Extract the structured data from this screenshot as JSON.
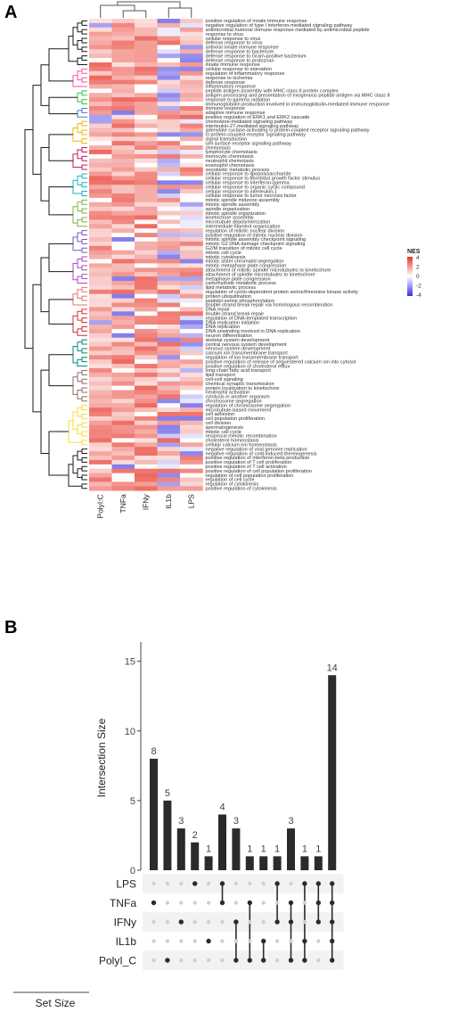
{
  "panels": {
    "a_label": "A",
    "b_label": "B"
  },
  "chart_data": [
    {
      "type": "heatmap",
      "columns": [
        "PolyI:C",
        "TNFa",
        "IFNy",
        "IL1b",
        "LPS"
      ],
      "legend": {
        "title": "NES",
        "ticks": [
          4,
          2,
          0,
          -2,
          -4
        ],
        "colors": {
          "high": "#e8362a",
          "mid": "#ffffff",
          "low": "#3b2fe0"
        }
      },
      "row_terms": [
        "positive regulation of innate immune response",
        "negative regulation of type I interferon-mediated signaling pathway",
        "antimicrobial humoral immune response mediated by antimicrobial peptide",
        "response to virus",
        "cellular response to virus",
        "defense response to virus",
        "antiviral innate immune response",
        "defense response to bacterium",
        "defense response to Gram-positive bacterium",
        "defense response to protozoan",
        "innate immune response",
        "cellular response to starvation",
        "regulation of inflammatory response",
        "response to ischemia",
        "defense response",
        "inflammatory response",
        "peptide antigen assembly with MHC class II protein complex",
        "antigen processing and presentation of exogenous peptide antigen via MHC class II",
        "response to gamma radiation",
        "immunoglobulin production involved in immunoglobulin-mediated immune response",
        "immune response",
        "adaptive immune response",
        "positive regulation of ERK1 and ERK2 cascade",
        "chemokine-mediated signaling pathway",
        "interleukin-27-mediated signaling pathway",
        "adenylate cyclase-activating G protein-coupled receptor signaling pathway",
        "G protein-coupled receptor signaling pathway",
        "signal transduction",
        "cell surface receptor signaling pathway",
        "chemotaxis",
        "lymphocyte chemotaxis",
        "monocyte chemotaxis",
        "neutrophil chemotaxis",
        "eosinophil chemotaxis",
        "xenobiotic metabolic process",
        "cellular response to lipopolysaccharide",
        "cellular response to fibroblast growth factor stimulus",
        "cellular response to interferon-gamma",
        "cellular response to organic cyclic compound",
        "cellular response to interleukin-1",
        "cellular response to tumor necrosis factor",
        "mitotic spindle midzone assembly",
        "mitotic spindle assembly",
        "spindle organization",
        "mitotic spindle organization",
        "kinetochore assembly",
        "microtubule depolymerization",
        "intermediate filament organization",
        "regulation of mitotic nuclear division",
        "positive regulation of mitotic nuclear division",
        "mitotic spindle assembly checkpoint signaling",
        "mitotic G2 DNA damage checkpoint signaling",
        "G2/M transition of mitotic cell cycle",
        "mitotic cell cycle",
        "mitotic cytokinesis",
        "mitotic sister chromatid segregation",
        "mitotic metaphase plate congression",
        "attachment of mitotic spindle microtubules to kinetochore",
        "attachment of spindle microtubules to kinetochore",
        "metaphase plate congression",
        "carbohydrate metabolic process",
        "lipid metabolic process",
        "regulation of cyclin-dependent protein serine/threonine kinase activity",
        "protein ubiquitination",
        "peptidyl-serine phosphorylation",
        "double-strand break repair via homologous recombination",
        "DNA repair",
        "double-strand break repair",
        "regulation of DNA-templated transcription",
        "DNA replication initiation",
        "DNA replication",
        "DNA unwinding involved in DNA replication",
        "neuron differentiation",
        "skeletal system development",
        "central nervous system development",
        "nervous system development",
        "calcium ion transmembrane transport",
        "regulation of ion transmembrane transport",
        "positive regulation of release of sequestered calcium ion into cytosol",
        "positive regulation of cholesterol efflux",
        "long-chain fatty acid transport",
        "lipid transport",
        "cell-cell signaling",
        "chemical synaptic transmission",
        "protein localization to kinetochore",
        "neutrophil activation",
        "cytolysis in another organism",
        "chromosome segregation",
        "regulation of chromosome segregation",
        "microtubule-based movement",
        "cell adhesion",
        "cell population proliferation",
        "cell division",
        "spermatogenesis",
        "mitotic cell cycle",
        "reciprocal meiotic recombination",
        "cholesterol homeostasis",
        "cellular calcium ion homeostasis",
        "negative regulation of viral genome replication",
        "negative regulation of cold-induced thermogenesis",
        "positive regulation of interferon-beta production",
        "positive regulation of T cell proliferation",
        "positive regulation of T cell activation",
        "positive regulation of cell population proliferation",
        "regulation of cell population proliferation",
        "regulation of cell cycle",
        "regulation of cytokinesis",
        "positive regulation of cytokinesis"
      ],
      "cluster_colors": [
        "#1a1a1a",
        "#ff4da6",
        "#2ecc40",
        "#3b7dd8",
        "#f4b400",
        "#c2185b",
        "#1ab2c8",
        "#7cb342",
        "#7e57c2",
        "#ab47bc",
        "#e57373",
        "#d32f2f",
        "#00897b",
        "#8d6e63",
        "#fdd835"
      ]
    },
    {
      "type": "bar",
      "ylabel": "Intersection Size",
      "ylim": [
        0,
        16
      ],
      "yticks": [
        0,
        5,
        10,
        15
      ],
      "values": [
        8,
        5,
        3,
        2,
        1,
        4,
        3,
        1,
        1,
        1,
        3,
        1,
        1,
        14
      ],
      "sets": [
        "LPS",
        "TNFa",
        "IFNy",
        "IL1b",
        "PolyI_C"
      ],
      "set_size_label": "Set Size",
      "memberships": [
        [
          "TNFa"
        ],
        [
          "PolyI_C"
        ],
        [
          "IFNy"
        ],
        [
          "LPS"
        ],
        [
          "IL1b"
        ],
        [
          "LPS",
          "TNFa"
        ],
        [
          "IFNy",
          "PolyI_C"
        ],
        [
          "TNFa",
          "PolyI_C"
        ],
        [
          "IL1b",
          "PolyI_C"
        ],
        [
          "LPS",
          "IFNy"
        ],
        [
          "TNFa",
          "IFNy",
          "PolyI_C"
        ],
        [
          "LPS",
          "IL1b",
          "PolyI_C"
        ],
        [
          "LPS",
          "TNFa",
          "IFNy"
        ],
        [
          "LPS",
          "TNFa",
          "IFNy",
          "IL1b",
          "PolyI_C"
        ]
      ],
      "colors": {
        "bar": "#2b2b2b",
        "dot_on": "#2b2b2b",
        "dot_off": "#d0d0d0",
        "stripe": "#f2f2f2"
      }
    }
  ]
}
